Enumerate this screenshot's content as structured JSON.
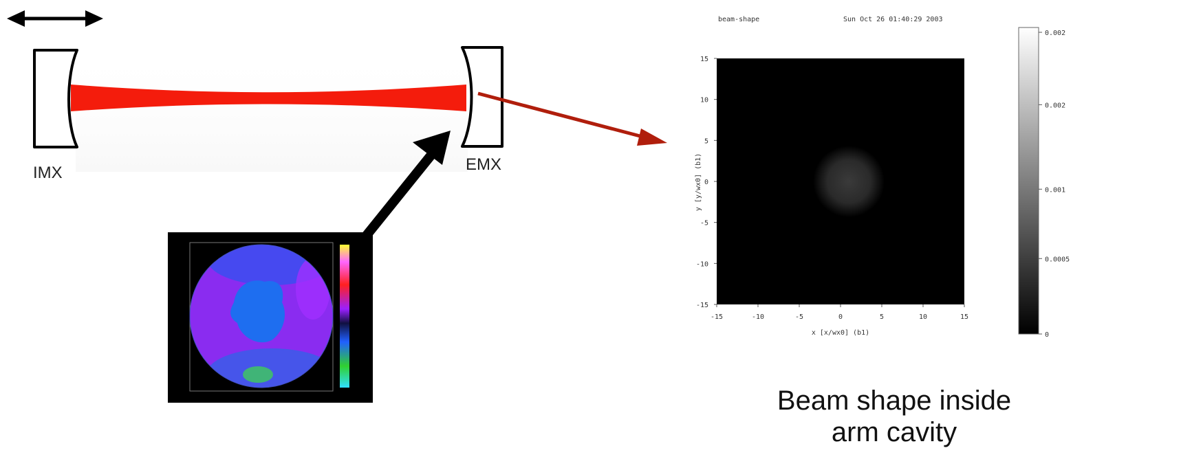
{
  "cavity": {
    "left_mirror_label": "IMX",
    "right_mirror_label": "EMX",
    "beam_color": "#f41c0c"
  },
  "inset_map": {
    "colorbar_colors": [
      "#ffff30",
      "#ff66ff",
      "#ff2020",
      "#9a20ff",
      "#101040",
      "#2060ff",
      "#30d030",
      "#30e0ff"
    ]
  },
  "beam_plot": {
    "title_left": "beam-shape",
    "title_right": "Sun Oct 26 01:40:29 2003",
    "xlabel": "x [x/wx0] (b1)",
    "ylabel": "y [y/wx0] (b1)",
    "xticks": [
      "-15",
      "-10",
      "-5",
      "0",
      "5",
      "10",
      "15"
    ],
    "yticks": [
      "15",
      "10",
      "5",
      "0",
      "-5",
      "-10",
      "-15"
    ],
    "colorbar_ticks": [
      "0.002",
      "0.002",
      "0.001",
      "0.0005",
      "0"
    ]
  },
  "caption": {
    "line1": "Beam shape inside",
    "line2": "arm cavity"
  },
  "colors": {
    "arrow_red": "#b01e0c",
    "arrow_black": "#000000",
    "plot_bg": "#000000"
  },
  "chart_data": {
    "type": "heatmap",
    "title": "beam-shape",
    "subtitle": "Sun Oct 26 01:40:29 2003",
    "xlabel": "x [x/wx0] (b1)",
    "ylabel": "y [y/wx0] (b1)",
    "xlim": [
      -15,
      15
    ],
    "ylim": [
      -15,
      15
    ],
    "colorbar_ticks": [
      "0.002",
      "0.002",
      "0.001",
      "0.0005",
      "0"
    ],
    "colormap": "gray",
    "spot_center": [
      1,
      0
    ]
  }
}
